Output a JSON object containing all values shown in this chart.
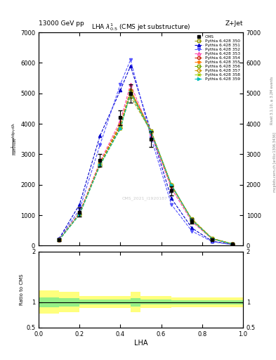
{
  "title": "LHA $\\lambda^{1}_{0.5}$ (CMS jet substructure)",
  "top_left_label": "13000 GeV pp",
  "top_right_label": "Z+Jet",
  "right_label_1": "Rivet 3.1.10, ≥ 3.2M events",
  "right_label_2": "mcplots.cern.ch [arXiv:1306.3436]",
  "watermark": "CMS_2021_I1920187",
  "xlabel": "LHA",
  "ylabel_main": "$\\frac{1}{\\mathrm{d}N}$",
  "ylabel_ratio": "Ratio to CMS",
  "xlim": [
    0,
    1
  ],
  "ylim_main": [
    0,
    7000
  ],
  "ylim_ratio": [
    0.5,
    2.0
  ],
  "x_data": [
    0.1,
    0.2,
    0.3,
    0.4,
    0.45,
    0.55,
    0.65,
    0.75,
    0.85,
    0.95
  ],
  "cms_data": [
    200,
    1100,
    2800,
    4200,
    5000,
    3500,
    1800,
    800,
    200,
    50
  ],
  "cms_errors": [
    50,
    150,
    200,
    250,
    300,
    250,
    150,
    80,
    40,
    15
  ],
  "series": [
    {
      "label": "Pythia 6.428 350",
      "color": "#999900",
      "linestyle": "--",
      "marker": "s",
      "markerfilled": false,
      "y": [
        190,
        1080,
        2700,
        4000,
        4900,
        3750,
        1950,
        880,
        240,
        58
      ]
    },
    {
      "label": "Pythia 6.428 351",
      "color": "#0000cc",
      "linestyle": "--",
      "marker": "^",
      "markerfilled": true,
      "y": [
        230,
        1350,
        3600,
        5100,
        5900,
        3750,
        1550,
        580,
        145,
        38
      ]
    },
    {
      "label": "Pythia 6.428 352",
      "color": "#5555ff",
      "linestyle": "--",
      "marker": "v",
      "markerfilled": true,
      "y": [
        215,
        1180,
        3300,
        5300,
        6100,
        3550,
        1350,
        480,
        125,
        33
      ]
    },
    {
      "label": "Pythia 6.428 353",
      "color": "#ff44aa",
      "linestyle": "--",
      "marker": "^",
      "markerfilled": false,
      "y": [
        195,
        1070,
        2750,
        4100,
        5300,
        3680,
        1880,
        790,
        215,
        53
      ]
    },
    {
      "label": "Pythia 6.428 354",
      "color": "#cc2200",
      "linestyle": "--",
      "marker": "o",
      "markerfilled": false,
      "y": [
        190,
        1040,
        2680,
        3950,
        5100,
        3730,
        1980,
        840,
        225,
        56
      ]
    },
    {
      "label": "Pythia 6.428 355",
      "color": "#ff7700",
      "linestyle": "--",
      "marker": "*",
      "markerfilled": true,
      "y": [
        188,
        1045,
        2700,
        3980,
        5120,
        3780,
        1990,
        860,
        230,
        56
      ]
    },
    {
      "label": "Pythia 6.428 356",
      "color": "#77aa00",
      "linestyle": "--",
      "marker": "s",
      "markerfilled": false,
      "y": [
        186,
        1035,
        2670,
        3900,
        5070,
        3760,
        1995,
        855,
        228,
        55
      ]
    },
    {
      "label": "Pythia 6.428 357",
      "color": "#cc9900",
      "linestyle": "--",
      "marker": "D",
      "markerfilled": false,
      "y": [
        184,
        1025,
        2645,
        3860,
        5030,
        3745,
        1995,
        848,
        225,
        54
      ]
    },
    {
      "label": "Pythia 6.428 358",
      "color": "#99cc00",
      "linestyle": "--",
      "marker": "x",
      "markerfilled": true,
      "y": [
        183,
        1018,
        2630,
        3835,
        5010,
        3738,
        1990,
        844,
        223,
        53
      ]
    },
    {
      "label": "Pythia 6.428 359",
      "color": "#00bbbb",
      "linestyle": "--",
      "marker": ">",
      "markerfilled": true,
      "y": [
        184,
        1020,
        2635,
        3845,
        5015,
        3742,
        1992,
        846,
        224,
        53
      ]
    }
  ],
  "ratio_x": [
    0.0,
    0.1,
    0.1,
    0.2,
    0.2,
    0.45,
    0.45,
    0.5,
    0.5,
    0.65,
    0.65,
    1.0
  ],
  "ratio_ylo": [
    0.77,
    0.77,
    0.8,
    0.8,
    0.88,
    0.88,
    0.8,
    0.8,
    0.88,
    0.88,
    0.9,
    0.9
  ],
  "ratio_yhi": [
    1.23,
    1.23,
    1.2,
    1.2,
    1.12,
    1.12,
    1.2,
    1.2,
    1.12,
    1.12,
    1.1,
    1.1
  ],
  "ratio_glo": [
    0.9,
    0.9,
    0.92,
    0.92,
    0.95,
    0.95,
    0.92,
    0.92,
    0.95,
    0.95,
    0.96,
    0.96
  ],
  "ratio_ghi": [
    1.1,
    1.1,
    1.08,
    1.08,
    1.05,
    1.05,
    1.08,
    1.08,
    1.05,
    1.05,
    1.04,
    1.04
  ]
}
